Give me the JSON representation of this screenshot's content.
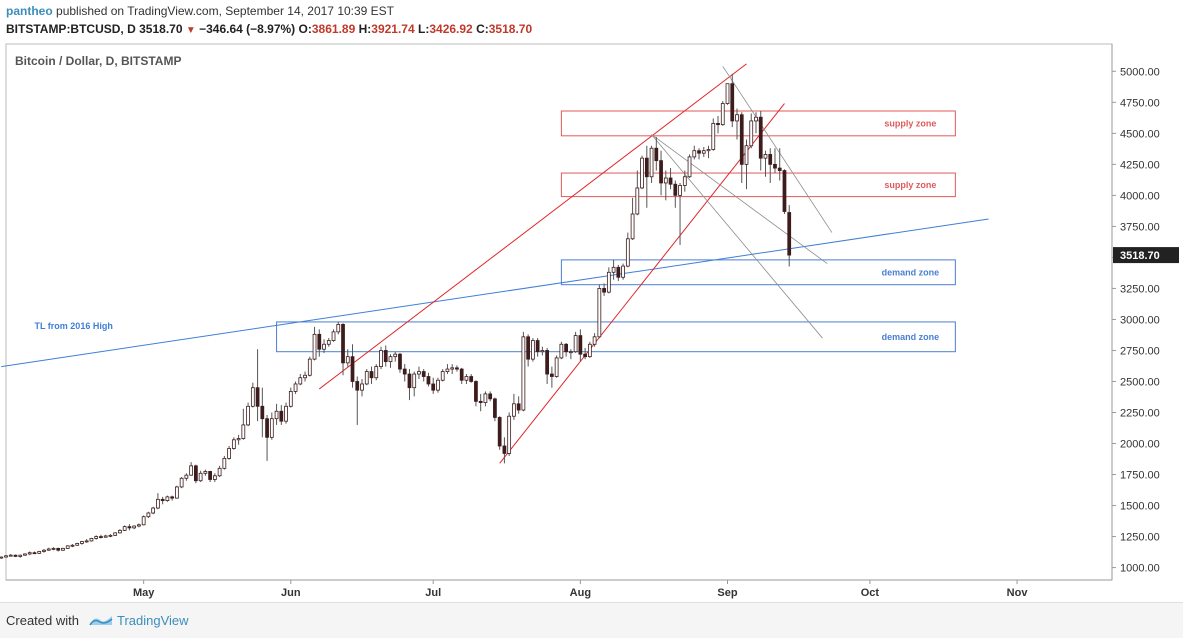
{
  "header": {
    "author": "pantheo",
    "published_text": "published on TradingView.com, September 14, 2017 10:39 EST",
    "symbol": "BITSTAMP:BTCUSD, D",
    "last": "3518.70",
    "change": "−346.64 (−8.97%)",
    "o_label": "O:",
    "o_value": "3861.89",
    "h_label": "H:",
    "h_value": "3921.74",
    "l_label": "L:",
    "l_value": "3426.92",
    "c_label": "C:",
    "c_value": "3518.70"
  },
  "footer": {
    "created_with": "Created with",
    "brand": "TradingView"
  },
  "colors": {
    "up": "#ffffff",
    "down": "#3d1c1c",
    "wick": "#555555",
    "red_line": "#e0262a",
    "blue_line": "#3f7fd6",
    "gray_line": "#8c8c8c",
    "supply": "#e05a5a",
    "demand": "#4a7fd1",
    "price_tag": "#222222"
  },
  "chart_data": {
    "type": "candlestick",
    "title": "Bitcoin / Dollar, D, BITSTAMP",
    "y_ticks": [
      1000,
      1250,
      1500,
      1750,
      2000,
      2250,
      2500,
      2750,
      3000,
      3250,
      3500,
      3750,
      4000,
      4250,
      4500,
      4750,
      5000
    ],
    "y_tick_labels": [
      "1000.00",
      "1250.00",
      "1500.00",
      "1750.00",
      "2000.00",
      "2250.00",
      "2500.00",
      "2750.00",
      "3000.00",
      "3250.00",
      "3500.00",
      "3750.00",
      "4000.00",
      "4250.00",
      "4500.00",
      "4750.00",
      "5000.00"
    ],
    "ylim": [
      900,
      5220
    ],
    "x_months": [
      {
        "label": "May",
        "date": "2017-05-01"
      },
      {
        "label": "Jun",
        "date": "2017-06-01"
      },
      {
        "label": "Jul",
        "date": "2017-07-01"
      },
      {
        "label": "Aug",
        "date": "2017-08-01"
      },
      {
        "label": "Sep",
        "date": "2017-09-01"
      },
      {
        "label": "Oct",
        "date": "2017-10-01"
      },
      {
        "label": "Nov",
        "date": "2017-11-01"
      }
    ],
    "xlim": [
      "2017-04-02",
      "2017-11-21"
    ],
    "last_price": "3518.70",
    "zones": [
      {
        "label": "supply zone",
        "kind": "supply",
        "x_start": "2017-07-28",
        "x_end": "2017-10-19",
        "y_low": 4480,
        "y_high": 4680
      },
      {
        "label": "supply zone",
        "kind": "supply",
        "x_start": "2017-07-28",
        "x_end": "2017-10-19",
        "y_low": 3990,
        "y_high": 4180
      },
      {
        "label": "demand zone",
        "kind": "demand",
        "x_start": "2017-07-28",
        "x_end": "2017-10-19",
        "y_low": 3280,
        "y_high": 3480
      },
      {
        "label": "demand zone",
        "kind": "demand",
        "x_start": "2017-05-29",
        "x_end": "2017-10-19",
        "y_low": 2740,
        "y_high": 2980
      }
    ],
    "annotations": [
      {
        "text": "TL from 2016 High",
        "date": "2017-04-08",
        "y": 2925
      }
    ],
    "trendlines": [
      {
        "kind": "blue",
        "from": [
          "2017-04-01",
          2620
        ],
        "to": [
          "2017-10-26",
          3810
        ]
      },
      {
        "kind": "red",
        "from": [
          "2017-06-07",
          2440
        ],
        "to": [
          "2017-09-05",
          5060
        ]
      },
      {
        "kind": "red",
        "from": [
          "2017-07-15",
          1840
        ],
        "to": [
          "2017-09-13",
          4740
        ]
      },
      {
        "kind": "gray",
        "from": [
          "2017-08-16",
          4490
        ],
        "to": [
          "2017-09-22",
          3450
        ]
      },
      {
        "kind": "gray",
        "from": [
          "2017-08-16",
          4490
        ],
        "to": [
          "2017-09-21",
          2850
        ]
      },
      {
        "kind": "gray",
        "from": [
          "2017-08-31",
          5040
        ],
        "to": [
          "2017-09-23",
          3700
        ]
      }
    ],
    "candles": [
      [
        "2017-04-01",
        1080,
        1090,
        1070,
        1085
      ],
      [
        "2017-04-02",
        1085,
        1100,
        1080,
        1095
      ],
      [
        "2017-04-03",
        1095,
        1110,
        1090,
        1100
      ],
      [
        "2017-04-04",
        1100,
        1105,
        1085,
        1090
      ],
      [
        "2017-04-05",
        1090,
        1105,
        1080,
        1100
      ],
      [
        "2017-04-06",
        1100,
        1115,
        1095,
        1110
      ],
      [
        "2017-04-07",
        1110,
        1130,
        1100,
        1120
      ],
      [
        "2017-04-08",
        1120,
        1130,
        1110,
        1115
      ],
      [
        "2017-04-09",
        1115,
        1135,
        1110,
        1130
      ],
      [
        "2017-04-10",
        1130,
        1150,
        1120,
        1140
      ],
      [
        "2017-04-11",
        1140,
        1160,
        1135,
        1150
      ],
      [
        "2017-04-12",
        1150,
        1165,
        1140,
        1155
      ],
      [
        "2017-04-13",
        1155,
        1160,
        1130,
        1140
      ],
      [
        "2017-04-14",
        1140,
        1160,
        1135,
        1155
      ],
      [
        "2017-04-15",
        1155,
        1180,
        1150,
        1175
      ],
      [
        "2017-04-16",
        1175,
        1190,
        1165,
        1180
      ],
      [
        "2017-04-17",
        1180,
        1200,
        1175,
        1195
      ],
      [
        "2017-04-18",
        1195,
        1215,
        1185,
        1210
      ],
      [
        "2017-04-19",
        1210,
        1230,
        1200,
        1215
      ],
      [
        "2017-04-20",
        1215,
        1240,
        1210,
        1235
      ],
      [
        "2017-04-21",
        1235,
        1260,
        1225,
        1250
      ],
      [
        "2017-04-22",
        1250,
        1265,
        1235,
        1245
      ],
      [
        "2017-04-23",
        1245,
        1265,
        1240,
        1255
      ],
      [
        "2017-04-24",
        1255,
        1270,
        1245,
        1260
      ],
      [
        "2017-04-25",
        1260,
        1285,
        1255,
        1280
      ],
      [
        "2017-04-26",
        1280,
        1310,
        1275,
        1300
      ],
      [
        "2017-04-27",
        1300,
        1340,
        1295,
        1330
      ],
      [
        "2017-04-28",
        1330,
        1350,
        1300,
        1320
      ],
      [
        "2017-04-29",
        1320,
        1340,
        1310,
        1335
      ],
      [
        "2017-04-30",
        1335,
        1355,
        1325,
        1345
      ],
      [
        "2017-05-01",
        1345,
        1420,
        1340,
        1410
      ],
      [
        "2017-05-02",
        1410,
        1450,
        1400,
        1440
      ],
      [
        "2017-05-03",
        1440,
        1490,
        1430,
        1480
      ],
      [
        "2017-05-04",
        1480,
        1600,
        1470,
        1550
      ],
      [
        "2017-05-05",
        1550,
        1570,
        1510,
        1540
      ],
      [
        "2017-05-06",
        1540,
        1580,
        1530,
        1570
      ],
      [
        "2017-05-07",
        1570,
        1580,
        1540,
        1560
      ],
      [
        "2017-05-08",
        1560,
        1660,
        1555,
        1650
      ],
      [
        "2017-05-09",
        1650,
        1730,
        1640,
        1720
      ],
      [
        "2017-05-10",
        1720,
        1760,
        1700,
        1745
      ],
      [
        "2017-05-11",
        1745,
        1850,
        1740,
        1820
      ],
      [
        "2017-05-12",
        1820,
        1830,
        1680,
        1700
      ],
      [
        "2017-05-13",
        1700,
        1780,
        1690,
        1760
      ],
      [
        "2017-05-14",
        1760,
        1790,
        1740,
        1775
      ],
      [
        "2017-05-15",
        1775,
        1780,
        1690,
        1710
      ],
      [
        "2017-05-16",
        1710,
        1760,
        1690,
        1740
      ],
      [
        "2017-05-17",
        1740,
        1820,
        1730,
        1800
      ],
      [
        "2017-05-18",
        1800,
        1900,
        1790,
        1880
      ],
      [
        "2017-05-19",
        1880,
        1980,
        1870,
        1960
      ],
      [
        "2017-05-20",
        1960,
        2050,
        1950,
        2030
      ],
      [
        "2017-05-21",
        2030,
        2070,
        1990,
        2040
      ],
      [
        "2017-05-22",
        2040,
        2280,
        2030,
        2150
      ],
      [
        "2017-05-23",
        2150,
        2330,
        2140,
        2300
      ],
      [
        "2017-05-24",
        2300,
        2490,
        2290,
        2450
      ],
      [
        "2017-05-25",
        2450,
        2760,
        2180,
        2300
      ],
      [
        "2017-05-26",
        2300,
        2450,
        2050,
        2200
      ],
      [
        "2017-05-27",
        2200,
        2230,
        1860,
        2050
      ],
      [
        "2017-05-28",
        2050,
        2250,
        2030,
        2200
      ],
      [
        "2017-05-29",
        2200,
        2320,
        2150,
        2260
      ],
      [
        "2017-05-30",
        2260,
        2310,
        2150,
        2180
      ],
      [
        "2017-05-31",
        2180,
        2330,
        2160,
        2300
      ],
      [
        "2017-06-01",
        2300,
        2450,
        2290,
        2420
      ],
      [
        "2017-06-02",
        2420,
        2500,
        2400,
        2480
      ],
      [
        "2017-06-03",
        2480,
        2560,
        2470,
        2530
      ],
      [
        "2017-06-04",
        2530,
        2580,
        2500,
        2550
      ],
      [
        "2017-06-05",
        2550,
        2700,
        2540,
        2680
      ],
      [
        "2017-06-06",
        2680,
        2940,
        2670,
        2880
      ],
      [
        "2017-06-07",
        2880,
        2920,
        2700,
        2760
      ],
      [
        "2017-06-08",
        2760,
        2840,
        2730,
        2800
      ],
      [
        "2017-06-09",
        2800,
        2850,
        2780,
        2830
      ],
      [
        "2017-06-10",
        2830,
        2920,
        2820,
        2900
      ],
      [
        "2017-06-11",
        2900,
        2980,
        2880,
        2960
      ],
      [
        "2017-06-12",
        2960,
        2970,
        2550,
        2650
      ],
      [
        "2017-06-13",
        2650,
        2760,
        2620,
        2700
      ],
      [
        "2017-06-14",
        2700,
        2800,
        2450,
        2500
      ],
      [
        "2017-06-15",
        2500,
        2540,
        2150,
        2430
      ],
      [
        "2017-06-16",
        2430,
        2520,
        2380,
        2480
      ],
      [
        "2017-06-17",
        2480,
        2600,
        2470,
        2580
      ],
      [
        "2017-06-18",
        2580,
        2620,
        2480,
        2530
      ],
      [
        "2017-06-19",
        2530,
        2640,
        2510,
        2620
      ],
      [
        "2017-06-20",
        2620,
        2780,
        2600,
        2750
      ],
      [
        "2017-06-21",
        2750,
        2790,
        2620,
        2660
      ],
      [
        "2017-06-22",
        2660,
        2720,
        2610,
        2700
      ],
      [
        "2017-06-23",
        2700,
        2740,
        2660,
        2720
      ],
      [
        "2017-06-24",
        2720,
        2730,
        2570,
        2600
      ],
      [
        "2017-06-25",
        2600,
        2640,
        2500,
        2560
      ],
      [
        "2017-06-26",
        2560,
        2600,
        2350,
        2450
      ],
      [
        "2017-06-27",
        2450,
        2580,
        2380,
        2560
      ],
      [
        "2017-06-28",
        2560,
        2620,
        2520,
        2580
      ],
      [
        "2017-06-29",
        2580,
        2600,
        2500,
        2540
      ],
      [
        "2017-06-30",
        2540,
        2570,
        2460,
        2480
      ],
      [
        "2017-07-01",
        2480,
        2530,
        2400,
        2430
      ],
      [
        "2017-07-02",
        2430,
        2530,
        2410,
        2510
      ],
      [
        "2017-07-03",
        2510,
        2600,
        2500,
        2580
      ],
      [
        "2017-07-04",
        2580,
        2640,
        2560,
        2600
      ],
      [
        "2017-07-05",
        2600,
        2640,
        2560,
        2610
      ],
      [
        "2017-07-06",
        2610,
        2630,
        2580,
        2600
      ],
      [
        "2017-07-07",
        2600,
        2610,
        2480,
        2510
      ],
      [
        "2017-07-08",
        2510,
        2560,
        2480,
        2540
      ],
      [
        "2017-07-09",
        2540,
        2560,
        2490,
        2500
      ],
      [
        "2017-07-10",
        2500,
        2510,
        2300,
        2340
      ],
      [
        "2017-07-11",
        2340,
        2400,
        2260,
        2330
      ],
      [
        "2017-07-12",
        2330,
        2420,
        2300,
        2400
      ],
      [
        "2017-07-13",
        2400,
        2420,
        2340,
        2360
      ],
      [
        "2017-07-14",
        2360,
        2370,
        2180,
        2210
      ],
      [
        "2017-07-15",
        2210,
        2220,
        1950,
        1980
      ],
      [
        "2017-07-16",
        1980,
        2050,
        1840,
        1920
      ],
      [
        "2017-07-17",
        1920,
        2250,
        1900,
        2220
      ],
      [
        "2017-07-18",
        2220,
        2400,
        2190,
        2320
      ],
      [
        "2017-07-19",
        2320,
        2380,
        2240,
        2270
      ],
      [
        "2017-07-20",
        2270,
        2900,
        2260,
        2860
      ],
      [
        "2017-07-21",
        2860,
        2880,
        2620,
        2680
      ],
      [
        "2017-07-22",
        2680,
        2850,
        2660,
        2830
      ],
      [
        "2017-07-23",
        2830,
        2850,
        2700,
        2740
      ],
      [
        "2017-07-24",
        2740,
        2780,
        2710,
        2750
      ],
      [
        "2017-07-25",
        2750,
        2770,
        2480,
        2560
      ],
      [
        "2017-07-26",
        2560,
        2620,
        2450,
        2540
      ],
      [
        "2017-07-27",
        2540,
        2710,
        2530,
        2690
      ],
      [
        "2017-07-28",
        2690,
        2820,
        2680,
        2800
      ],
      [
        "2017-07-29",
        2800,
        2810,
        2700,
        2740
      ],
      [
        "2017-07-30",
        2740,
        2760,
        2680,
        2740
      ],
      [
        "2017-07-31",
        2740,
        2900,
        2730,
        2870
      ],
      [
        "2017-08-01",
        2870,
        2920,
        2660,
        2720
      ],
      [
        "2017-08-02",
        2720,
        2770,
        2680,
        2700
      ],
      [
        "2017-08-03",
        2700,
        2820,
        2690,
        2800
      ],
      [
        "2017-08-04",
        2800,
        2890,
        2780,
        2860
      ],
      [
        "2017-08-05",
        2860,
        3280,
        2850,
        3250
      ],
      [
        "2017-08-06",
        3250,
        3290,
        3190,
        3220
      ],
      [
        "2017-08-07",
        3220,
        3420,
        3210,
        3380
      ],
      [
        "2017-08-08",
        3380,
        3480,
        3320,
        3420
      ],
      [
        "2017-08-09",
        3420,
        3440,
        3310,
        3340
      ],
      [
        "2017-08-10",
        3340,
        3450,
        3320,
        3430
      ],
      [
        "2017-08-11",
        3430,
        3700,
        3420,
        3650
      ],
      [
        "2017-08-12",
        3650,
        3980,
        3640,
        3850
      ],
      [
        "2017-08-13",
        3850,
        4200,
        3840,
        4060
      ],
      [
        "2017-08-14",
        4060,
        4320,
        4050,
        4300
      ],
      [
        "2017-08-15",
        4300,
        4400,
        3900,
        4150
      ],
      [
        "2017-08-16",
        4150,
        4400,
        4100,
        4380
      ],
      [
        "2017-08-17",
        4380,
        4470,
        4200,
        4280
      ],
      [
        "2017-08-18",
        4280,
        4360,
        4000,
        4100
      ],
      [
        "2017-08-19",
        4100,
        4200,
        3960,
        4140
      ],
      [
        "2017-08-20",
        4140,
        4220,
        4050,
        4090
      ],
      [
        "2017-08-21",
        4090,
        4120,
        3900,
        4000
      ],
      [
        "2017-08-22",
        4000,
        4100,
        3600,
        4080
      ],
      [
        "2017-08-23",
        4080,
        4200,
        4030,
        4150
      ],
      [
        "2017-08-24",
        4150,
        4330,
        4140,
        4310
      ],
      [
        "2017-08-25",
        4310,
        4400,
        4290,
        4360
      ],
      [
        "2017-08-26",
        4360,
        4380,
        4290,
        4340
      ],
      [
        "2017-08-27",
        4340,
        4390,
        4310,
        4360
      ],
      [
        "2017-08-28",
        4360,
        4400,
        4300,
        4370
      ],
      [
        "2017-08-29",
        4370,
        4620,
        4360,
        4580
      ],
      [
        "2017-08-30",
        4580,
        4640,
        4500,
        4570
      ],
      [
        "2017-08-31",
        4570,
        4760,
        4560,
        4740
      ],
      [
        "2017-09-01",
        4740,
        4900,
        4730,
        4900
      ],
      [
        "2017-09-02",
        4900,
        4980,
        4550,
        4600
      ],
      [
        "2017-09-03",
        4600,
        4700,
        4450,
        4650
      ],
      [
        "2017-09-04",
        4650,
        4670,
        4100,
        4250
      ],
      [
        "2017-09-05",
        4250,
        4450,
        4050,
        4400
      ],
      [
        "2017-09-06",
        4400,
        4660,
        4380,
        4600
      ],
      [
        "2017-09-07",
        4600,
        4670,
        4500,
        4630
      ],
      [
        "2017-09-08",
        4630,
        4680,
        4200,
        4300
      ],
      [
        "2017-09-09",
        4300,
        4360,
        4150,
        4330
      ],
      [
        "2017-09-10",
        4330,
        4380,
        4100,
        4250
      ],
      [
        "2017-09-11",
        4250,
        4380,
        4180,
        4220
      ],
      [
        "2017-09-12",
        4220,
        4380,
        4120,
        4200
      ],
      [
        "2017-09-13",
        4200,
        4210,
        3850,
        3870
      ],
      [
        "2017-09-14",
        3861.89,
        3921.74,
        3426.92,
        3518.7
      ]
    ]
  }
}
